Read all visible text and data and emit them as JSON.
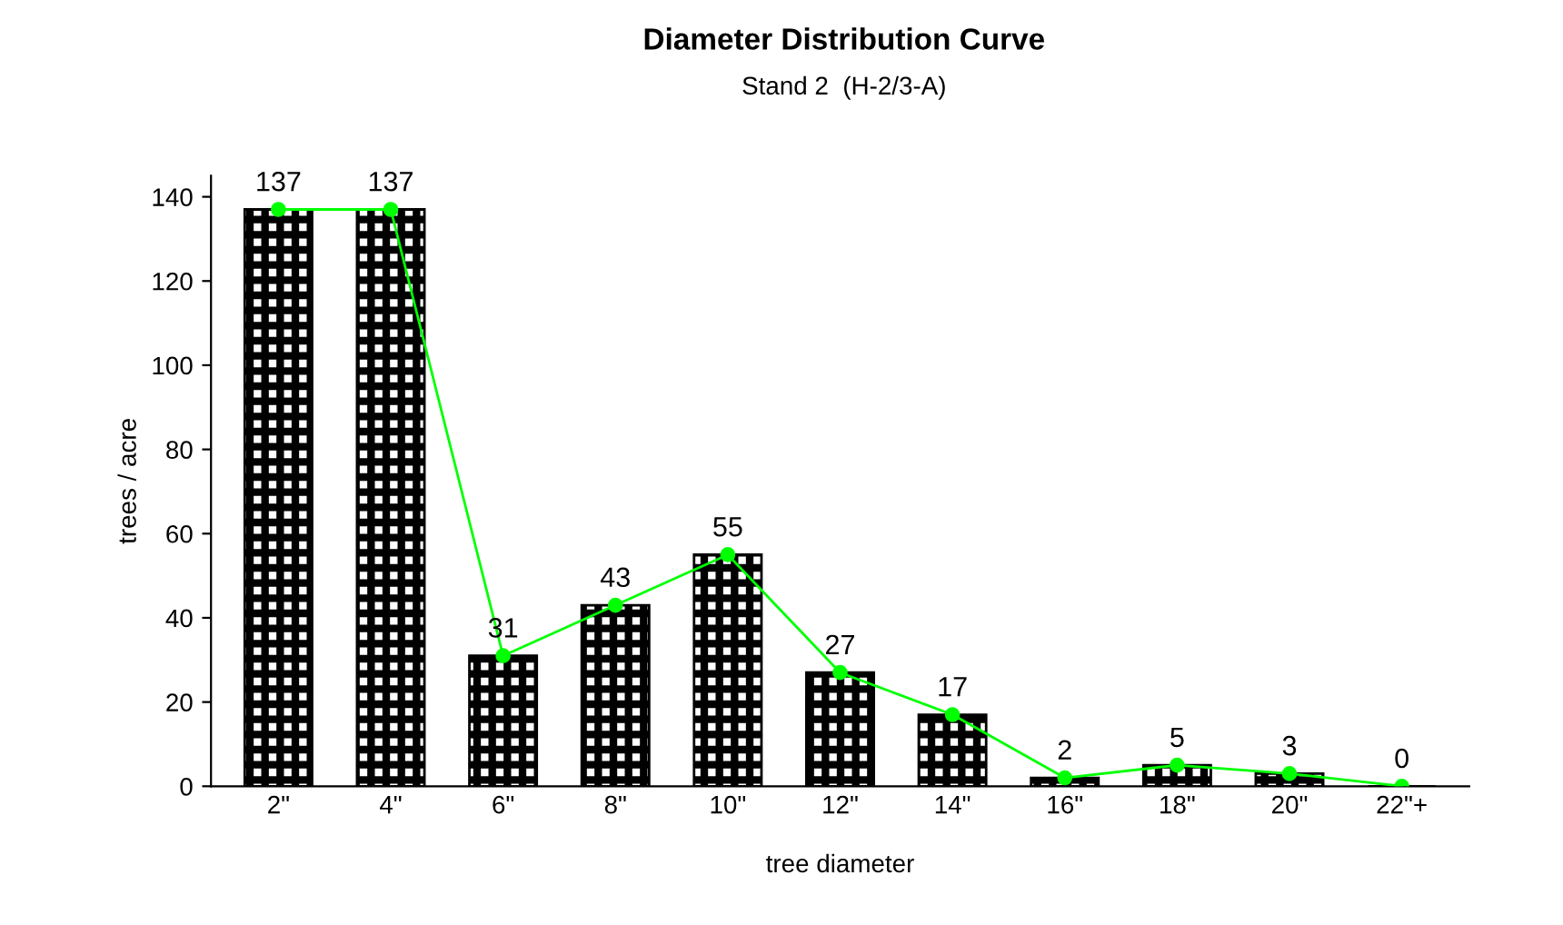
{
  "chart_data": {
    "type": "bar",
    "title": "Diameter Distribution Curve",
    "subtitle": "Stand 2  (H-2/3-A)",
    "xlabel": "tree diameter",
    "ylabel": "trees / acre",
    "categories": [
      "2\"",
      "4\"",
      "6\"",
      "8\"",
      "10\"",
      "12\"",
      "14\"",
      "16\"",
      "18\"",
      "20\"",
      "22\"+"
    ],
    "series": [
      {
        "color": "#000000",
        "values": [
          137,
          137,
          31,
          43,
          55,
          27,
          17,
          2,
          5,
          3,
          0
        ],
        "value_labels": [
          "137",
          "137",
          "31",
          "43",
          "55",
          "27",
          "17",
          "2",
          "5",
          "3",
          "0"
        ]
      },
      {
        "type": "line",
        "color": "#00ff00",
        "values": [
          137,
          137,
          31,
          43,
          55,
          27,
          17,
          2,
          5,
          3,
          0
        ],
        "marker": "circle"
      }
    ],
    "ylim": [
      0,
      145
    ],
    "yticks": [
      0,
      20,
      40,
      60,
      80,
      100,
      120,
      140
    ],
    "grid": false,
    "legend": false
  }
}
